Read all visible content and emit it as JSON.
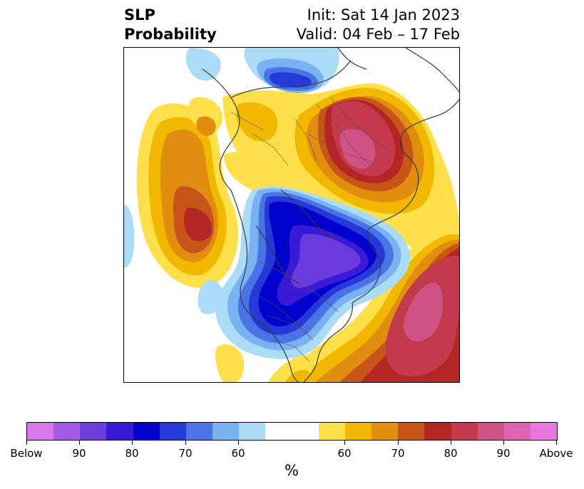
{
  "header": {
    "variable": "SLP",
    "product": "Probability",
    "init": "Init: Sat 14 Jan 2023",
    "valid": "Valid: 04 Feb – 17 Feb"
  },
  "map": {
    "projection": "north-polar-stereographic",
    "colors": {
      "above_60": "#ffe04a",
      "above_65": "#f2b800",
      "above_70": "#e08d10",
      "above_75": "#c85518",
      "above_80": "#b42626",
      "above_85": "#c23a4c",
      "above_90": "#cf5284",
      "below_60": "#aadcf8",
      "below_65": "#78b2f2",
      "below_70": "#4a74e6",
      "below_75": "#2439d8",
      "below_80": "#0000cc",
      "below_85": "#3a1ad6",
      "below_90": "#6a3ce0"
    }
  },
  "colorbar": {
    "unit": "%",
    "colors": [
      "#d677ea",
      "#a25ae2",
      "#6f3fdc",
      "#3a1ad6",
      "#0000cc",
      "#2439d8",
      "#4a74e6",
      "#78b2f2",
      "#aadcf8",
      "#ffffff",
      "#ffffff",
      "#ffe04a",
      "#f2b800",
      "#e08d10",
      "#c85518",
      "#b42626",
      "#c23a4c",
      "#cf5284",
      "#dc62b4",
      "#e878e0"
    ],
    "tick_labels": [
      "Below",
      "90",
      "80",
      "70",
      "60",
      "60",
      "70",
      "80",
      "90",
      "Above"
    ]
  }
}
